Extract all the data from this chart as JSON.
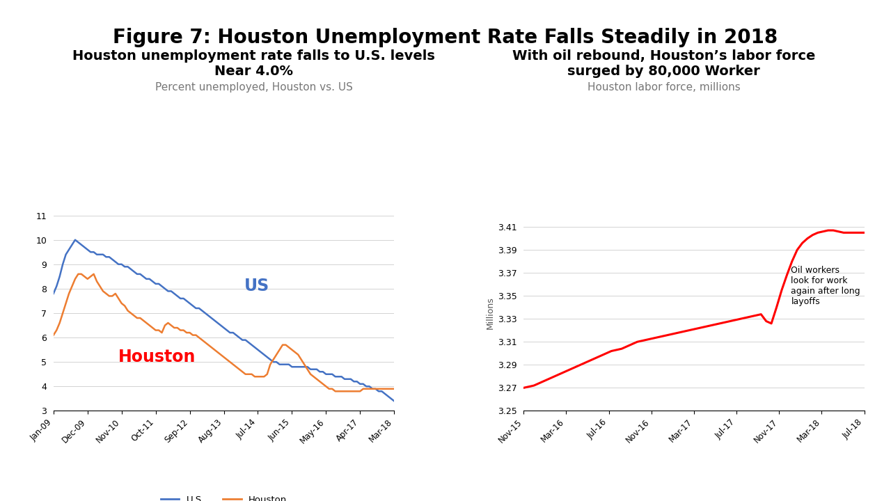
{
  "title": "Figure 7: Houston Unemployment Rate Falls Steadily in 2018",
  "title_fontsize": 20,
  "left_chart": {
    "title_line1": "Houston unemployment rate falls to U.S. levels",
    "title_line2": "Near 4.0%",
    "subtitle": "Percent unemployed, Houston vs. US",
    "title_fontsize": 14,
    "subtitle_fontsize": 11,
    "ylim": [
      3,
      11
    ],
    "yticks": [
      3,
      4,
      5,
      6,
      7,
      8,
      9,
      10,
      11
    ],
    "us_color": "#4472C4",
    "houston_color": "#ED7D31",
    "us_label": "U.S.",
    "houston_label": "Houston",
    "us_annotation": "US",
    "houston_annotation": "Houston",
    "us_annotation_color": "#4472C4",
    "houston_annotation_color": "#FF0000",
    "xtick_labels": [
      "Jan-09",
      "Dec-09",
      "Nov-10",
      "Oct-11",
      "Sep-12",
      "Aug-13",
      "Jul-14",
      "Jun-15",
      "May-16",
      "Apr-17",
      "Mar-18"
    ],
    "us_data": [
      7.8,
      8.1,
      8.5,
      9.0,
      9.4,
      9.6,
      9.8,
      10.0,
      9.9,
      9.8,
      9.7,
      9.6,
      9.5,
      9.5,
      9.4,
      9.4,
      9.4,
      9.3,
      9.3,
      9.2,
      9.1,
      9.0,
      9.0,
      8.9,
      8.9,
      8.8,
      8.7,
      8.6,
      8.6,
      8.5,
      8.4,
      8.4,
      8.3,
      8.2,
      8.2,
      8.1,
      8.0,
      7.9,
      7.9,
      7.8,
      7.7,
      7.6,
      7.6,
      7.5,
      7.4,
      7.3,
      7.2,
      7.2,
      7.1,
      7.0,
      6.9,
      6.8,
      6.7,
      6.6,
      6.5,
      6.4,
      6.3,
      6.2,
      6.2,
      6.1,
      6.0,
      5.9,
      5.9,
      5.8,
      5.7,
      5.6,
      5.5,
      5.4,
      5.3,
      5.2,
      5.1,
      5.0,
      5.0,
      4.9,
      4.9,
      4.9,
      4.9,
      4.8,
      4.8,
      4.8,
      4.8,
      4.8,
      4.8,
      4.7,
      4.7,
      4.7,
      4.6,
      4.6,
      4.5,
      4.5,
      4.5,
      4.4,
      4.4,
      4.4,
      4.3,
      4.3,
      4.3,
      4.2,
      4.2,
      4.1,
      4.1,
      4.0,
      4.0,
      3.9,
      3.9,
      3.8,
      3.8,
      3.7,
      3.6,
      3.5,
      3.4
    ],
    "houston_data": [
      6.1,
      6.3,
      6.6,
      7.0,
      7.4,
      7.8,
      8.1,
      8.4,
      8.6,
      8.6,
      8.5,
      8.4,
      8.5,
      8.6,
      8.3,
      8.1,
      7.9,
      7.8,
      7.7,
      7.7,
      7.8,
      7.6,
      7.4,
      7.3,
      7.1,
      7.0,
      6.9,
      6.8,
      6.8,
      6.7,
      6.6,
      6.5,
      6.4,
      6.3,
      6.3,
      6.2,
      6.5,
      6.6,
      6.5,
      6.4,
      6.4,
      6.3,
      6.3,
      6.2,
      6.2,
      6.1,
      6.1,
      6.0,
      5.9,
      5.8,
      5.7,
      5.6,
      5.5,
      5.4,
      5.3,
      5.2,
      5.1,
      5.0,
      4.9,
      4.8,
      4.7,
      4.6,
      4.5,
      4.5,
      4.5,
      4.4,
      4.4,
      4.4,
      4.4,
      4.5,
      4.9,
      5.1,
      5.3,
      5.5,
      5.7,
      5.7,
      5.6,
      5.5,
      5.4,
      5.3,
      5.1,
      4.9,
      4.7,
      4.5,
      4.4,
      4.3,
      4.2,
      4.1,
      4.0,
      3.9,
      3.9,
      3.8,
      3.8,
      3.8,
      3.8,
      3.8,
      3.8,
      3.8,
      3.8,
      3.8,
      3.9,
      3.9,
      3.9,
      3.9,
      3.9,
      3.9,
      3.9,
      3.9,
      3.9,
      3.9,
      3.9
    ]
  },
  "right_chart": {
    "title_line1": "With oil rebound, Houston’s labor force",
    "title_line2": "surged by 80,000 Worker",
    "subtitle": "Houston labor force, millions",
    "title_fontsize": 14,
    "subtitle_fontsize": 11,
    "ylabel": "Millions",
    "ylim": [
      3.25,
      3.42
    ],
    "yticks": [
      3.25,
      3.27,
      3.29,
      3.31,
      3.33,
      3.35,
      3.37,
      3.39,
      3.41
    ],
    "line_color": "#FF0000",
    "annotation": "Oil workers\nlook for work\nagain after long\nlayoffs",
    "xtick_labels": [
      "Nov-15",
      "Mar-16",
      "Jul-16",
      "Nov-16",
      "Mar-17",
      "Jul-17",
      "Nov-17",
      "Mar-18",
      "Jul-18"
    ],
    "labor_data": [
      3.27,
      3.271,
      3.272,
      3.274,
      3.276,
      3.278,
      3.28,
      3.282,
      3.284,
      3.286,
      3.288,
      3.29,
      3.292,
      3.294,
      3.296,
      3.298,
      3.3,
      3.302,
      3.303,
      3.304,
      3.306,
      3.308,
      3.31,
      3.311,
      3.312,
      3.313,
      3.314,
      3.315,
      3.316,
      3.317,
      3.318,
      3.319,
      3.32,
      3.321,
      3.322,
      3.323,
      3.324,
      3.325,
      3.326,
      3.327,
      3.328,
      3.329,
      3.33,
      3.331,
      3.332,
      3.333,
      3.334,
      3.328,
      3.326,
      3.34,
      3.355,
      3.368,
      3.38,
      3.39,
      3.396,
      3.4,
      3.403,
      3.405,
      3.406,
      3.407,
      3.407,
      3.406,
      3.405,
      3.405,
      3.405,
      3.405,
      3.405
    ]
  },
  "bg_color": "#FFFFFF"
}
